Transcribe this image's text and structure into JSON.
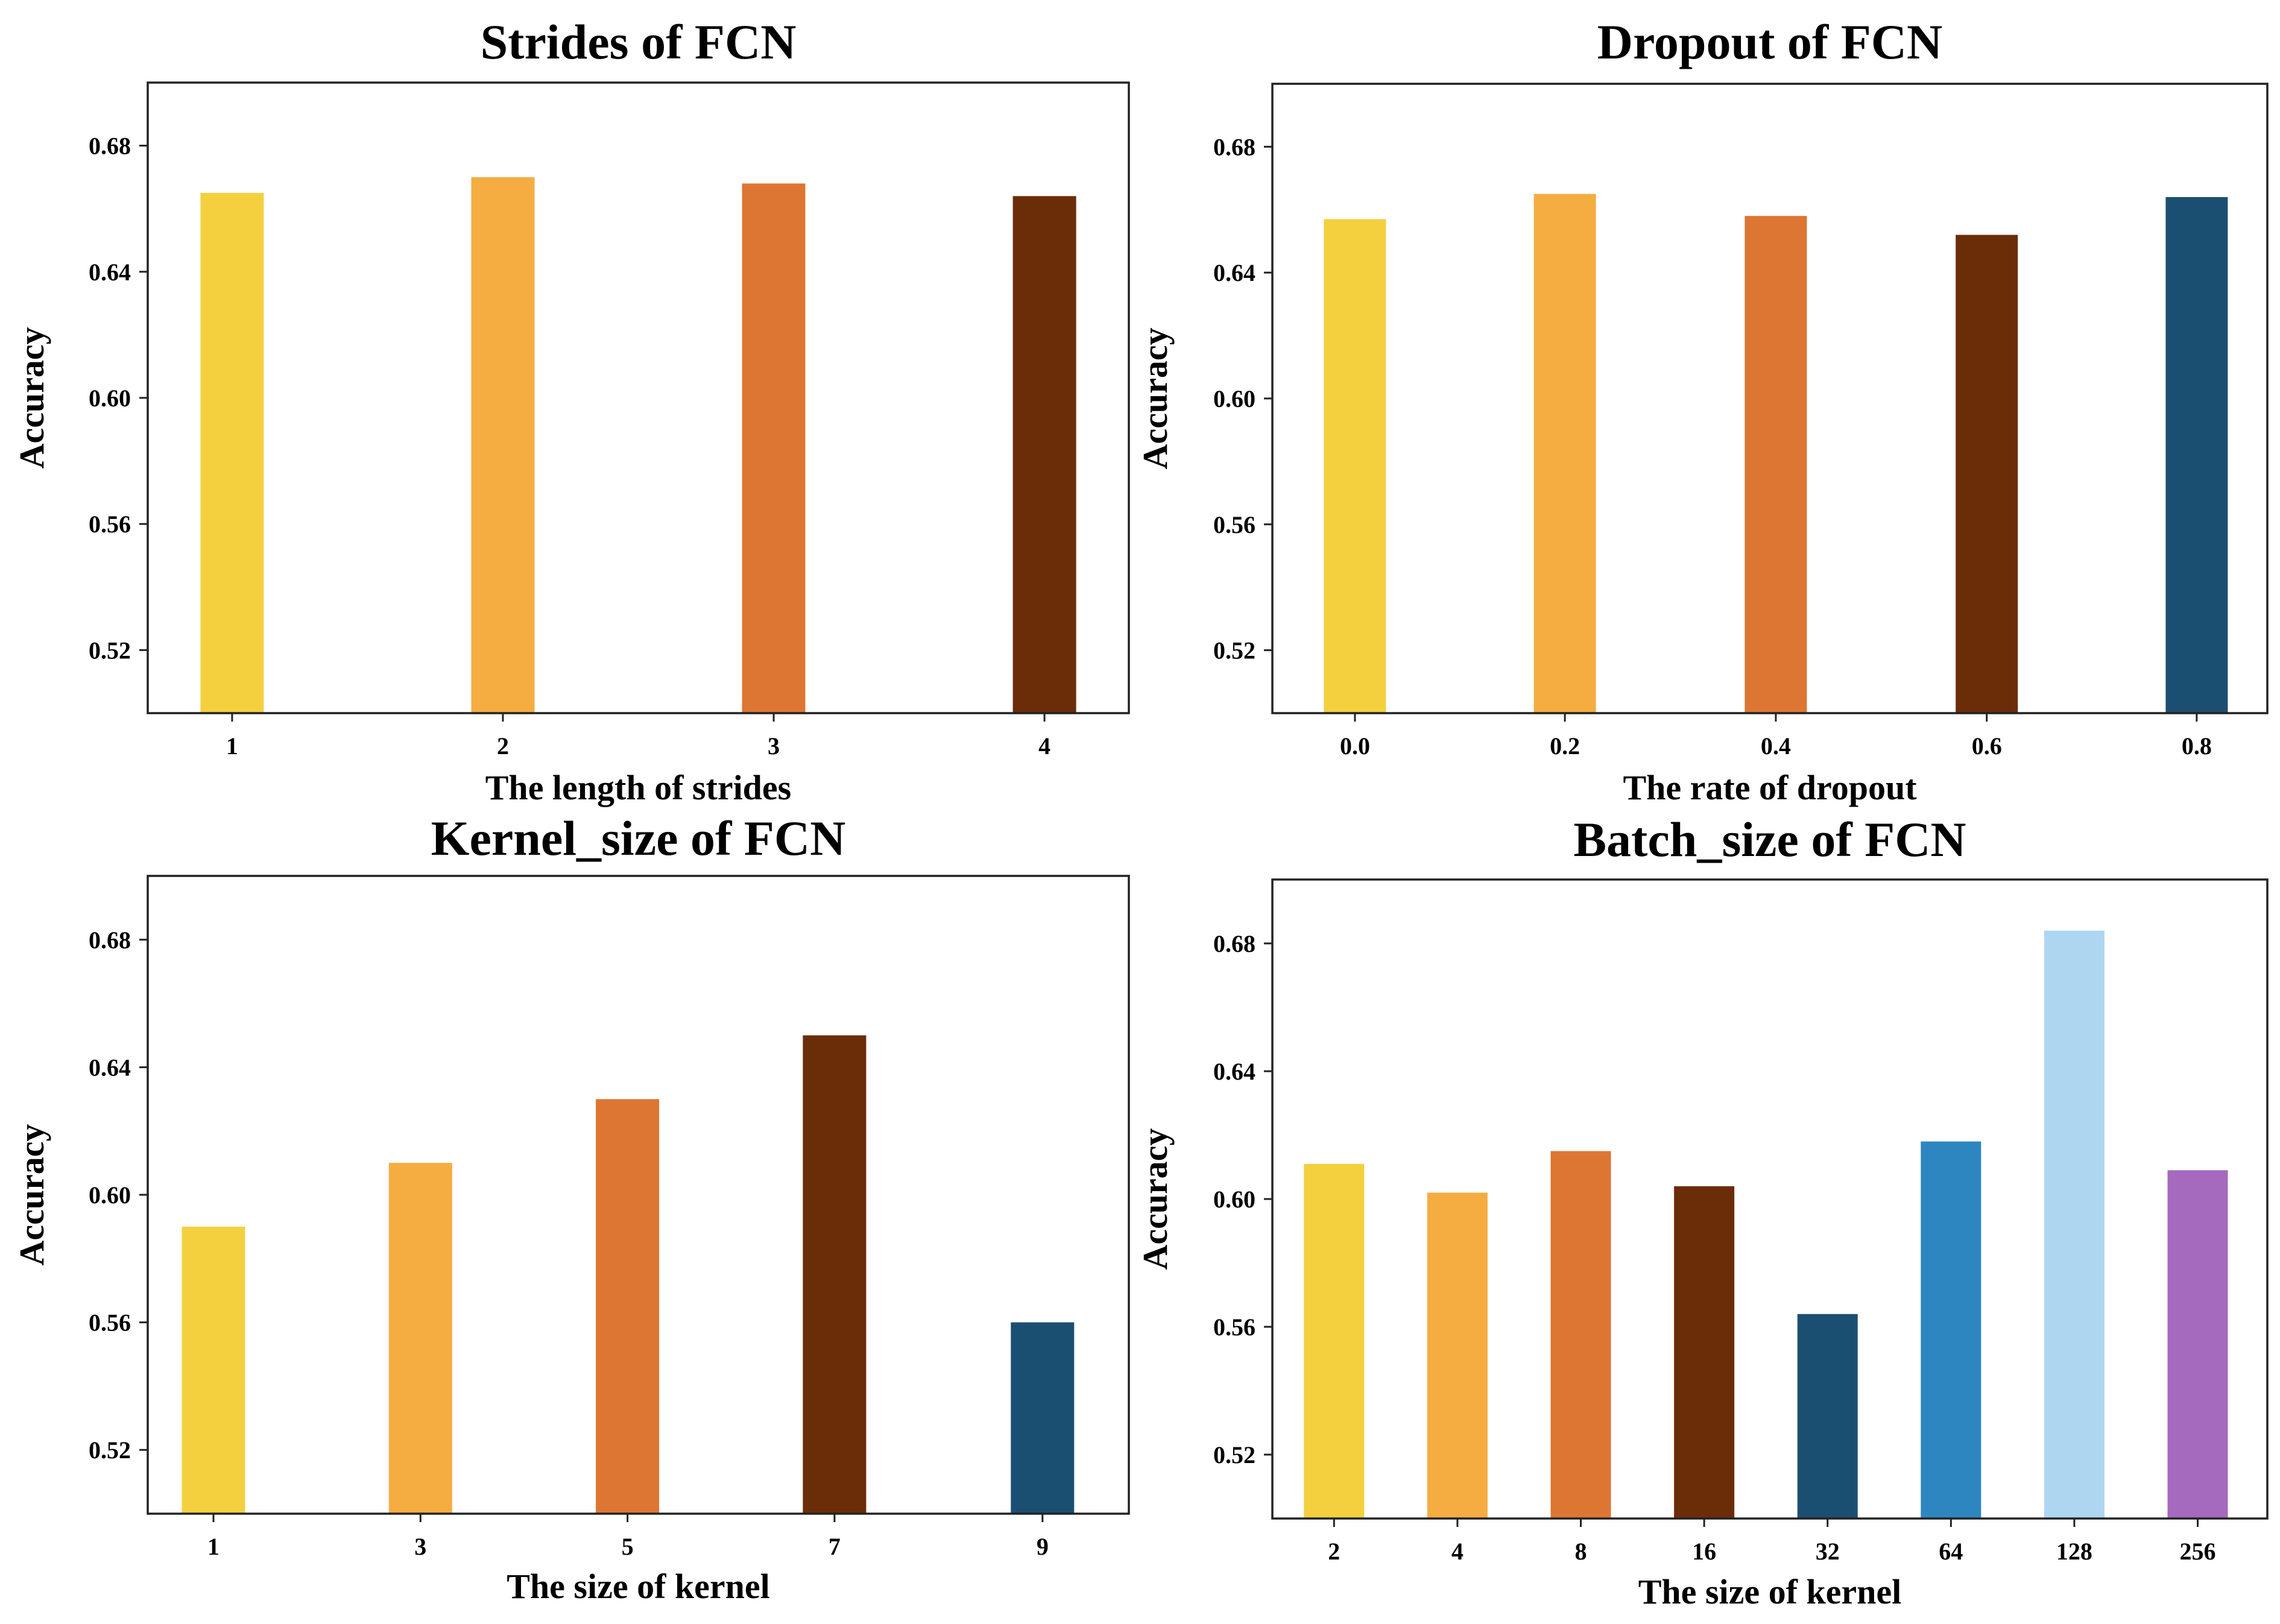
{
  "figure": {
    "ylabel_common": "Accuracy"
  },
  "chart_data": [
    {
      "type": "bar",
      "title": "Strides of FCN",
      "xlabel": "The length of strides",
      "ylabel": "Accuracy",
      "ylim": [
        0.5,
        0.7
      ],
      "yticks": [
        "0.52",
        "0.56",
        "0.60",
        "0.64",
        "0.68"
      ],
      "categories": [
        "1",
        "2",
        "3",
        "4"
      ],
      "values": [
        0.665,
        0.67,
        0.668,
        0.664
      ],
      "colors": [
        "#F4D03F",
        "#F5AD41",
        "#DD7633",
        "#6B2C08"
      ]
    },
    {
      "type": "bar",
      "title": "Dropout of FCN",
      "xlabel": "The rate of dropout",
      "ylabel": "Accuracy",
      "ylim": [
        0.5,
        0.7
      ],
      "yticks": [
        "0.52",
        "0.56",
        "0.60",
        "0.64",
        "0.68"
      ],
      "categories": [
        "0.0",
        "0.2",
        "0.4",
        "0.6",
        "0.8"
      ],
      "values": [
        0.657,
        0.665,
        0.658,
        0.652,
        0.664
      ],
      "colors": [
        "#F4D03F",
        "#F5AD41",
        "#DD7633",
        "#6B2C08",
        "#1B4F72"
      ]
    },
    {
      "type": "bar",
      "title": "Kernel_size of FCN",
      "xlabel": "The size of kernel",
      "ylabel": "Accuracy",
      "ylim": [
        0.5,
        0.7
      ],
      "yticks": [
        "0.52",
        "0.56",
        "0.60",
        "0.64",
        "0.68"
      ],
      "categories": [
        "1",
        "3",
        "5",
        "7",
        "9"
      ],
      "values": [
        0.59,
        0.61,
        0.63,
        0.65,
        0.56
      ],
      "colors": [
        "#F4D03F",
        "#F5AD41",
        "#DD7633",
        "#6B2C08",
        "#1B4F72"
      ]
    },
    {
      "type": "bar",
      "title": "Batch_size of FCN",
      "xlabel": "The size of kernel",
      "ylabel": "Accuracy",
      "ylim": [
        0.5,
        0.7
      ],
      "yticks": [
        "0.52",
        "0.56",
        "0.60",
        "0.64",
        "0.68"
      ],
      "categories": [
        "2",
        "4",
        "8",
        "16",
        "32",
        "64",
        "128",
        "256"
      ],
      "values": [
        0.611,
        0.602,
        0.615,
        0.604,
        0.564,
        0.618,
        0.684,
        0.609
      ],
      "colors": [
        "#F4D03F",
        "#F5AD41",
        "#DD7633",
        "#6B2C08",
        "#1B4F72",
        "#2E86C1",
        "#AED6F1",
        "#A569BD"
      ]
    }
  ]
}
